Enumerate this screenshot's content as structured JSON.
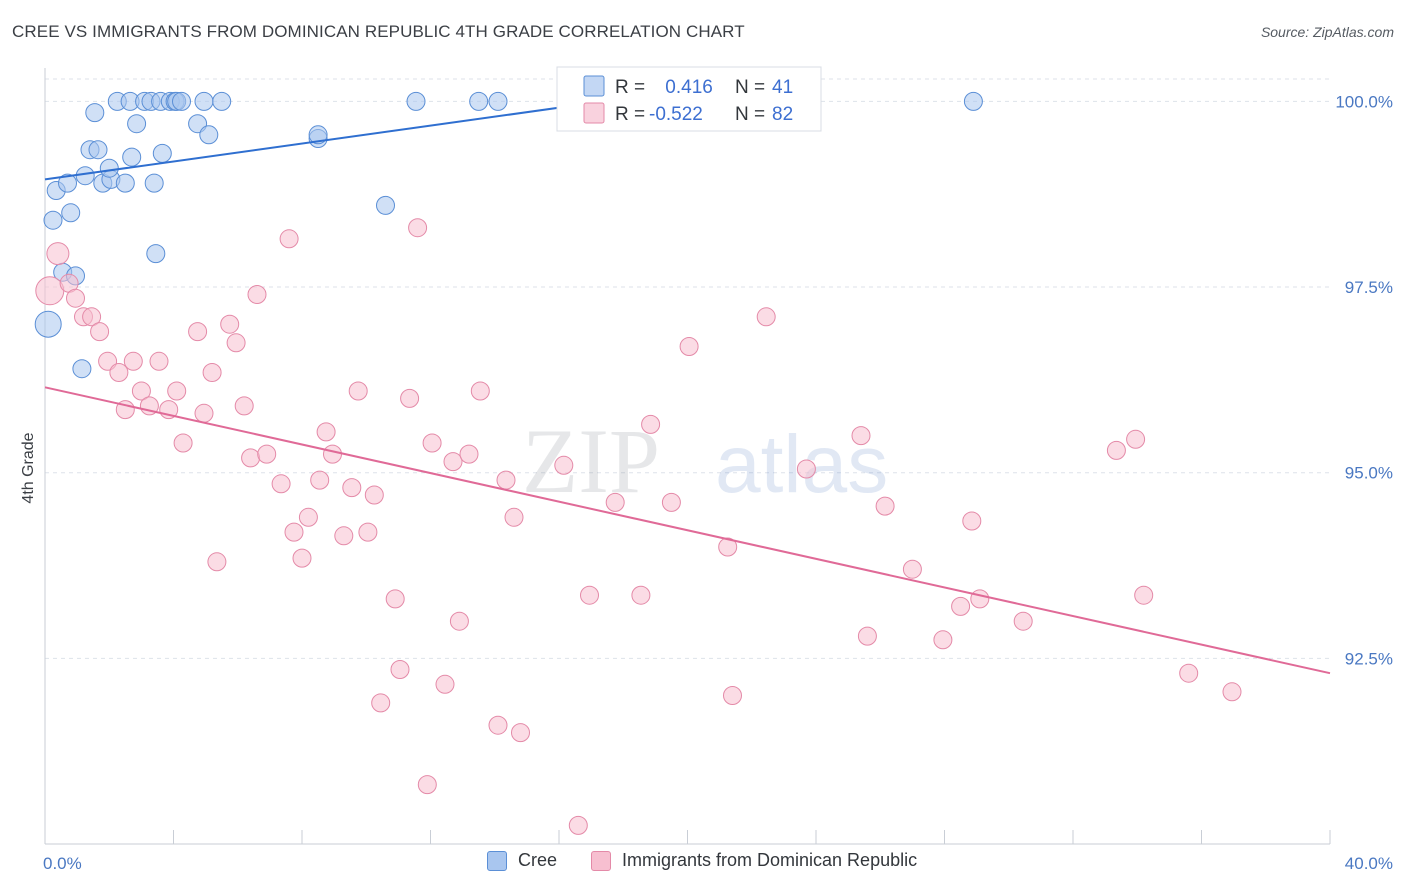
{
  "title": "CREE VS IMMIGRANTS FROM DOMINICAN REPUBLIC 4TH GRADE CORRELATION CHART",
  "source": "Source: ZipAtlas.com",
  "watermark": {
    "zip": "ZIP",
    "atlas": "atlas"
  },
  "colors": {
    "cree_fill": "#a9c6ef",
    "cree_stroke": "#5b8fd6",
    "cree_line": "#2f6fd0",
    "dom_fill": "#f7bfd0",
    "dom_stroke": "#e48aa8",
    "dom_line": "#e06a97",
    "axis_text": "#4a78c2",
    "grid": "#dde2ea"
  },
  "legend": {
    "rows": [
      {
        "series": "cree",
        "r_label": "R =",
        "r_value": " 0.416",
        "n_label": "N =",
        "n_value": "41"
      },
      {
        "series": "dom",
        "r_label": "R =",
        "r_value": "-0.522",
        "n_label": "N =",
        "n_value": "82"
      }
    ]
  },
  "bottom_legend": [
    {
      "series": "cree",
      "label": "Cree"
    },
    {
      "series": "dom",
      "label": "Immigrants from Dominican Republic"
    }
  ],
  "chart_data": {
    "type": "scatter",
    "title": "CREE VS IMMIGRANTS FROM DOMINICAN REPUBLIC 4TH GRADE CORRELATION CHART",
    "xlabel": "",
    "ylabel": "4th Grade",
    "xlim": [
      0,
      40
    ],
    "ylim": [
      90.0,
      100.45
    ],
    "x_tick_labels": [
      {
        "value": 0,
        "label": "0.0%"
      },
      {
        "value": 40,
        "label": "40.0%"
      }
    ],
    "y_tick_labels": [
      {
        "value": 100,
        "label": "100.0%"
      },
      {
        "value": 97.5,
        "label": "97.5%"
      },
      {
        "value": 95,
        "label": "95.0%"
      },
      {
        "value": 92.5,
        "label": "92.5%"
      }
    ],
    "x_minor_ticks": [
      0,
      4,
      8,
      12,
      16,
      20,
      24,
      28,
      32,
      36,
      40
    ],
    "series": [
      {
        "name": "Cree",
        "key": "cree",
        "R": 0.416,
        "N": 41,
        "trend": {
          "x": [
            0,
            17.4
          ],
          "y": [
            98.95,
            100.0
          ]
        },
        "points": [
          [
            0.1,
            97.0,
            13
          ],
          [
            0.25,
            98.4,
            9
          ],
          [
            0.35,
            98.8,
            9
          ],
          [
            0.55,
            97.7,
            9
          ],
          [
            0.7,
            98.9,
            9
          ],
          [
            0.8,
            98.5,
            9
          ],
          [
            0.95,
            97.65,
            9
          ],
          [
            1.15,
            96.4,
            9
          ],
          [
            1.25,
            99.0,
            9
          ],
          [
            1.4,
            99.35,
            9
          ],
          [
            1.55,
            99.85,
            9
          ],
          [
            1.65,
            99.35,
            9
          ],
          [
            1.8,
            98.9,
            9
          ],
          [
            2.05,
            98.95,
            9
          ],
          [
            2.0,
            99.1,
            9
          ],
          [
            2.25,
            100.0,
            9
          ],
          [
            2.5,
            98.9,
            9
          ],
          [
            2.65,
            100.0,
            9
          ],
          [
            2.7,
            99.25,
            9
          ],
          [
            2.85,
            99.7,
            9
          ],
          [
            3.1,
            100.0,
            9
          ],
          [
            3.3,
            100.0,
            9
          ],
          [
            3.4,
            98.9,
            9
          ],
          [
            3.45,
            97.95,
            9
          ],
          [
            3.6,
            100.0,
            9
          ],
          [
            3.65,
            99.3,
            9
          ],
          [
            3.9,
            100.0,
            9
          ],
          [
            4.05,
            100.0,
            9
          ],
          [
            4.1,
            100.0,
            9
          ],
          [
            4.25,
            100.0,
            9
          ],
          [
            4.75,
            99.7,
            9
          ],
          [
            4.95,
            100.0,
            9
          ],
          [
            5.1,
            99.55,
            9
          ],
          [
            5.5,
            100.0,
            9
          ],
          [
            8.5,
            99.5,
            9
          ],
          [
            8.5,
            99.55,
            9
          ],
          [
            10.6,
            98.6,
            9
          ],
          [
            11.55,
            100.0,
            9
          ],
          [
            13.5,
            100.0,
            9
          ],
          [
            14.1,
            100.0,
            9
          ],
          [
            28.9,
            100.0,
            9
          ]
        ]
      },
      {
        "name": "Immigrants from Dominican Republic",
        "key": "dom",
        "R": -0.522,
        "N": 82,
        "trend": {
          "x": [
            0,
            40
          ],
          "y": [
            96.15,
            92.3
          ]
        },
        "points": [
          [
            0.15,
            97.45,
            14
          ],
          [
            0.4,
            97.95,
            11
          ],
          [
            0.75,
            97.55,
            9
          ],
          [
            0.95,
            97.35,
            9
          ],
          [
            1.2,
            97.1,
            9
          ],
          [
            1.45,
            97.1,
            9
          ],
          [
            1.7,
            96.9,
            9
          ],
          [
            1.95,
            96.5,
            9
          ],
          [
            2.3,
            96.35,
            9
          ],
          [
            2.5,
            95.85,
            9
          ],
          [
            2.75,
            96.5,
            9
          ],
          [
            3.0,
            96.1,
            9
          ],
          [
            3.25,
            95.9,
            9
          ],
          [
            3.55,
            96.5,
            9
          ],
          [
            3.85,
            95.85,
            9
          ],
          [
            4.1,
            96.1,
            9
          ],
          [
            4.3,
            95.4,
            9
          ],
          [
            4.75,
            96.9,
            9
          ],
          [
            4.95,
            95.8,
            9
          ],
          [
            5.2,
            96.35,
            9
          ],
          [
            5.35,
            93.8,
            9
          ],
          [
            5.75,
            97.0,
            9
          ],
          [
            5.95,
            96.75,
            9
          ],
          [
            6.2,
            95.9,
            9
          ],
          [
            6.4,
            95.2,
            9
          ],
          [
            6.6,
            97.4,
            9
          ],
          [
            6.9,
            95.25,
            9
          ],
          [
            7.35,
            94.85,
            9
          ],
          [
            7.6,
            98.15,
            9
          ],
          [
            7.75,
            94.2,
            9
          ],
          [
            8.0,
            93.85,
            9
          ],
          [
            8.2,
            94.4,
            9
          ],
          [
            8.55,
            94.9,
            9
          ],
          [
            8.75,
            95.55,
            9
          ],
          [
            8.95,
            95.25,
            9
          ],
          [
            9.3,
            94.15,
            9
          ],
          [
            9.55,
            94.8,
            9
          ],
          [
            9.75,
            96.1,
            9
          ],
          [
            10.05,
            94.2,
            9
          ],
          [
            10.25,
            94.7,
            9
          ],
          [
            10.45,
            91.9,
            9
          ],
          [
            10.9,
            93.3,
            9
          ],
          [
            11.05,
            92.35,
            9
          ],
          [
            11.35,
            96.0,
            9
          ],
          [
            11.6,
            98.3,
            9
          ],
          [
            11.9,
            90.8,
            9
          ],
          [
            12.05,
            95.4,
            9
          ],
          [
            12.45,
            92.15,
            9
          ],
          [
            12.7,
            95.15,
            9
          ],
          [
            12.9,
            93.0,
            9
          ],
          [
            13.2,
            95.25,
            9
          ],
          [
            13.55,
            96.1,
            9
          ],
          [
            14.1,
            91.6,
            9
          ],
          [
            14.35,
            94.9,
            9
          ],
          [
            14.6,
            94.4,
            9
          ],
          [
            14.8,
            91.5,
            9
          ],
          [
            16.15,
            95.1,
            9
          ],
          [
            16.6,
            90.25,
            9
          ],
          [
            16.95,
            93.35,
            9
          ],
          [
            17.75,
            94.6,
            9
          ],
          [
            18.55,
            93.35,
            9
          ],
          [
            18.85,
            95.65,
            9
          ],
          [
            19.5,
            94.6,
            9
          ],
          [
            20.05,
            96.7,
            9
          ],
          [
            21.25,
            94.0,
            9
          ],
          [
            21.4,
            92.0,
            9
          ],
          [
            22.45,
            97.1,
            9
          ],
          [
            23.7,
            95.05,
            9
          ],
          [
            25.4,
            95.5,
            9
          ],
          [
            25.6,
            92.8,
            9
          ],
          [
            26.15,
            94.55,
            9
          ],
          [
            27.0,
            93.7,
            9
          ],
          [
            27.95,
            92.75,
            9
          ],
          [
            28.5,
            93.2,
            9
          ],
          [
            28.85,
            94.35,
            9
          ],
          [
            29.1,
            93.3,
            9
          ],
          [
            30.45,
            93.0,
            9
          ],
          [
            33.35,
            95.3,
            9
          ],
          [
            33.95,
            95.45,
            9
          ],
          [
            34.2,
            93.35,
            9
          ],
          [
            35.6,
            92.3,
            9
          ],
          [
            36.95,
            92.05,
            9
          ]
        ]
      }
    ]
  }
}
